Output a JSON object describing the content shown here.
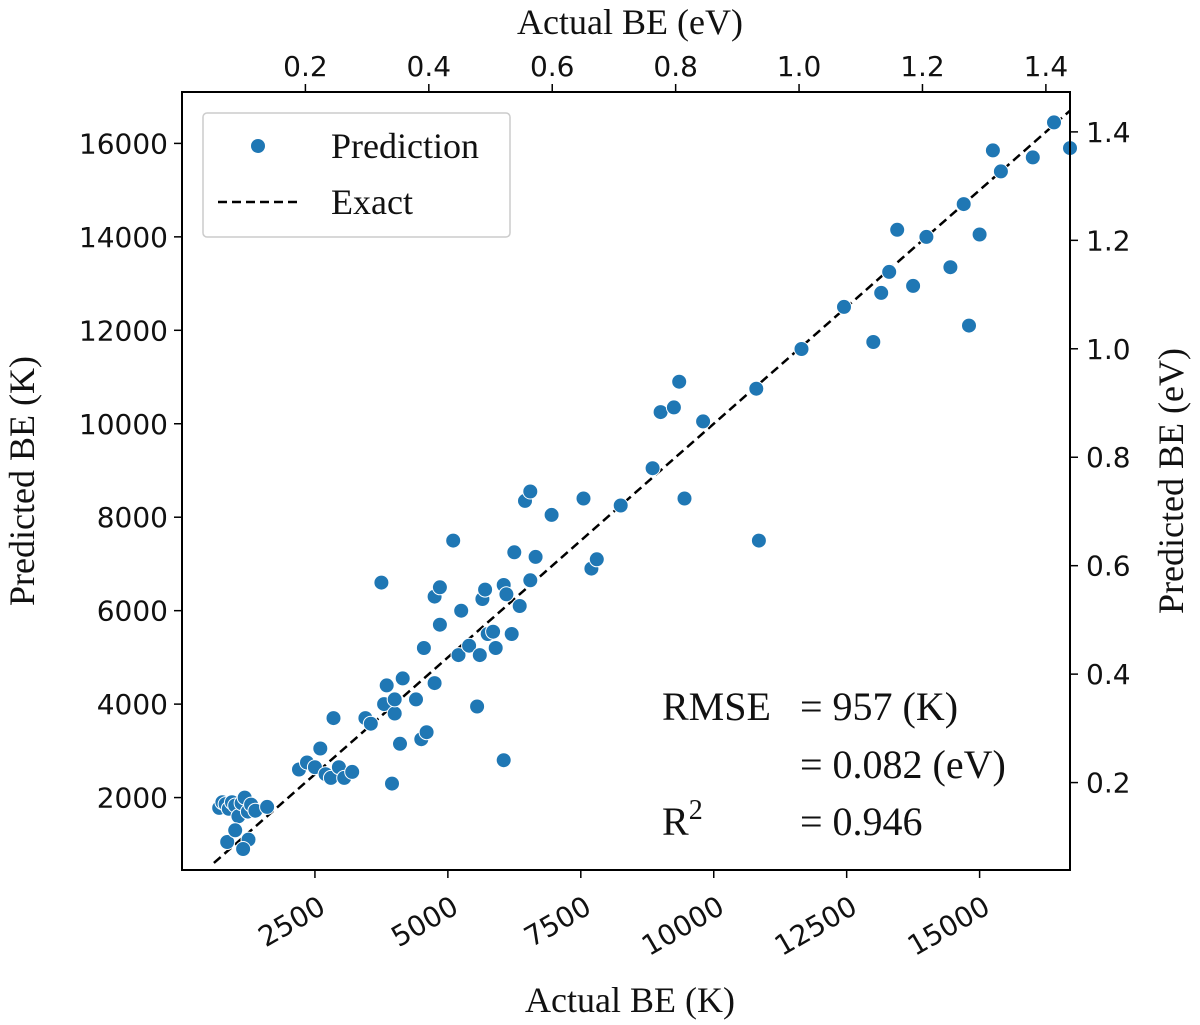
{
  "chart_data": {
    "type": "scatter",
    "x_unit_label": "Actual BE (K)",
    "y_unit_label": "Predicted BE (K)",
    "x_top_label": "Actual BE (eV)",
    "y_right_label": "Predicted BE (eV)",
    "xlim": [
      0,
      16700
    ],
    "ylim": [
      450,
      17100
    ],
    "x_ticks": [
      2500,
      5000,
      7500,
      10000,
      12500,
      15000
    ],
    "y_ticks": [
      2000,
      4000,
      6000,
      8000,
      10000,
      12000,
      14000,
      16000
    ],
    "x_top_ticks": [
      0.2,
      0.4,
      0.6,
      0.8,
      1.0,
      1.2,
      1.4
    ],
    "y_right_ticks": [
      0.2,
      0.4,
      0.6,
      0.8,
      1.0,
      1.2,
      1.4
    ],
    "x_top_tick_labels": [
      "0.2",
      "0.4",
      "0.6",
      "0.8",
      "1.0",
      "1.2",
      "1.4"
    ],
    "y_right_tick_labels": [
      "0.2",
      "0.4",
      "0.6",
      "0.8",
      "1.0",
      "1.2",
      "1.4"
    ],
    "ev_to_k": 11604.5,
    "series": [
      {
        "name": "Prediction",
        "color": "#1f77b4",
        "points": [
          [
            700,
            1780
          ],
          [
            760,
            1900
          ],
          [
            820,
            1860
          ],
          [
            880,
            1760
          ],
          [
            940,
            1900
          ],
          [
            1000,
            1830
          ],
          [
            1060,
            1600
          ],
          [
            1120,
            1880
          ],
          [
            1180,
            2000
          ],
          [
            1240,
            1700
          ],
          [
            1300,
            1850
          ],
          [
            1380,
            1720
          ],
          [
            850,
            1050
          ],
          [
            1000,
            1300
          ],
          [
            1250,
            1100
          ],
          [
            1150,
            900
          ],
          [
            1600,
            1800
          ],
          [
            2200,
            2600
          ],
          [
            2350,
            2750
          ],
          [
            2500,
            2650
          ],
          [
            2600,
            3050
          ],
          [
            2700,
            2500
          ],
          [
            2800,
            2420
          ],
          [
            2850,
            3700
          ],
          [
            2950,
            2650
          ],
          [
            3050,
            2420
          ],
          [
            3200,
            2550
          ],
          [
            3450,
            3700
          ],
          [
            3550,
            3580
          ],
          [
            3750,
            6600
          ],
          [
            3800,
            4000
          ],
          [
            3850,
            4400
          ],
          [
            3950,
            2300
          ],
          [
            4000,
            3800
          ],
          [
            4000,
            4100
          ],
          [
            4100,
            3150
          ],
          [
            4150,
            4550
          ],
          [
            4400,
            4100
          ],
          [
            4500,
            3250
          ],
          [
            4550,
            5200
          ],
          [
            4600,
            3400
          ],
          [
            4750,
            4450
          ],
          [
            4750,
            6300
          ],
          [
            4850,
            6500
          ],
          [
            4850,
            5700
          ],
          [
            5100,
            7500
          ],
          [
            5200,
            5050
          ],
          [
            5250,
            6000
          ],
          [
            5400,
            5250
          ],
          [
            5550,
            3950
          ],
          [
            5600,
            5050
          ],
          [
            5650,
            6250
          ],
          [
            5700,
            6450
          ],
          [
            5750,
            5500
          ],
          [
            5850,
            5550
          ],
          [
            5900,
            5200
          ],
          [
            6050,
            6550
          ],
          [
            6100,
            6350
          ],
          [
            6050,
            2800
          ],
          [
            6200,
            5500
          ],
          [
            6250,
            7250
          ],
          [
            6350,
            6100
          ],
          [
            6450,
            8350
          ],
          [
            6550,
            8550
          ],
          [
            6550,
            6650
          ],
          [
            6650,
            7150
          ],
          [
            6950,
            8050
          ],
          [
            7550,
            8400
          ],
          [
            7700,
            6900
          ],
          [
            7800,
            7100
          ],
          [
            8250,
            8250
          ],
          [
            8850,
            9050
          ],
          [
            9000,
            10250
          ],
          [
            9250,
            10350
          ],
          [
            9350,
            10900
          ],
          [
            9450,
            8400
          ],
          [
            9800,
            10050
          ],
          [
            10800,
            10750
          ],
          [
            10850,
            7500
          ],
          [
            11650,
            11600
          ],
          [
            12450,
            12500
          ],
          [
            13000,
            11750
          ],
          [
            13150,
            12800
          ],
          [
            13300,
            13250
          ],
          [
            13450,
            14150
          ],
          [
            13750,
            12950
          ],
          [
            14000,
            14000
          ],
          [
            14450,
            13350
          ],
          [
            14700,
            14700
          ],
          [
            14800,
            12100
          ],
          [
            15000,
            14050
          ],
          [
            15250,
            15850
          ],
          [
            15400,
            15400
          ],
          [
            16000,
            15700
          ],
          [
            16400,
            16450
          ],
          [
            16700,
            15900
          ]
        ]
      },
      {
        "name": "Exact",
        "color": "#000000",
        "line": [
          [
            600,
            600
          ],
          [
            16700,
            16700
          ]
        ]
      }
    ],
    "legend": {
      "location": "top-left",
      "items": [
        "Prediction",
        "Exact"
      ]
    },
    "annotations": {
      "rmse_label": "RMSE",
      "rmse_value_k": "= 957 (K)",
      "rmse_value_ev": "= 0.082 (eV)",
      "r2_label": "R",
      "r2_superscript": "2",
      "r2_value": "= 0.946"
    }
  }
}
